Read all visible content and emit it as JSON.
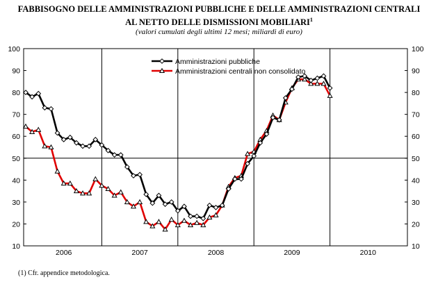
{
  "chart_data": {
    "type": "line",
    "title_line1": "FABBISOGNO DELLE AMMINISTRAZIONI PUBBLICHE E DELLE AMMINISTRAZIONI CENTRALI",
    "title_line2": "AL NETTO DELLE DISMISSIONI MOBILIARI",
    "title_sup": "1",
    "subtitle": "(valori cumulati degli ultimi 12 mesi; miliardi di euro)",
    "x_labels": [
      "2006",
      "2007",
      "2008",
      "2009",
      "2010"
    ],
    "ylim": [
      10,
      100
    ],
    "y_ticks": [
      10,
      20,
      30,
      40,
      50,
      60,
      70,
      80,
      90,
      100
    ],
    "grid": "vertical year separators and horizontal line at 50",
    "legend_placement": "top-center",
    "series": [
      {
        "name": "Amministrazioni pubbliche",
        "color": "#000000",
        "marker": "diamond",
        "x": [
          "2006-01",
          "2006-02",
          "2006-03",
          "2006-04",
          "2006-05",
          "2006-06",
          "2006-07",
          "2006-08",
          "2006-09",
          "2006-10",
          "2006-11",
          "2006-12",
          "2007-01",
          "2007-02",
          "2007-03",
          "2007-04",
          "2007-05",
          "2007-06",
          "2007-07",
          "2007-08",
          "2007-09",
          "2007-10",
          "2007-11",
          "2007-12",
          "2008-01",
          "2008-02",
          "2008-03",
          "2008-04",
          "2008-05",
          "2008-06",
          "2008-07",
          "2008-08",
          "2008-09",
          "2008-10",
          "2008-11",
          "2008-12",
          "2009-01",
          "2009-02",
          "2009-03",
          "2009-04",
          "2009-05",
          "2009-06",
          "2009-07",
          "2009-08",
          "2009-09",
          "2009-10",
          "2009-11",
          "2009-12",
          "2010-01"
        ],
        "values": [
          80,
          78,
          79.5,
          73,
          72.5,
          61.5,
          58.5,
          59.5,
          57,
          55.5,
          55.5,
          58.5,
          56,
          53.5,
          51.5,
          51.5,
          46,
          42,
          42.5,
          33.5,
          29.5,
          33,
          29,
          30,
          26,
          28,
          23.5,
          23.5,
          22.5,
          28.5,
          27.5,
          28.5,
          36,
          40.5,
          40.5,
          47.5,
          51,
          57,
          61,
          68.5,
          67.5,
          77.5,
          81.5,
          87,
          87.5,
          85.5,
          86.5,
          87.5,
          82
        ]
      },
      {
        "name": "Amministrazioni centrali non consolidato",
        "color": "#e00000",
        "marker": "triangle",
        "x": [
          "2006-01",
          "2006-02",
          "2006-03",
          "2006-04",
          "2006-05",
          "2006-06",
          "2006-07",
          "2006-08",
          "2006-09",
          "2006-10",
          "2006-11",
          "2006-12",
          "2007-01",
          "2007-02",
          "2007-03",
          "2007-04",
          "2007-05",
          "2007-06",
          "2007-07",
          "2007-08",
          "2007-09",
          "2007-10",
          "2007-11",
          "2007-12",
          "2008-01",
          "2008-02",
          "2008-03",
          "2008-04",
          "2008-05",
          "2008-06",
          "2008-07",
          "2008-08",
          "2008-09",
          "2008-10",
          "2008-11",
          "2008-12",
          "2009-01",
          "2009-02",
          "2009-03",
          "2009-04",
          "2009-05",
          "2009-06",
          "2009-07",
          "2009-08",
          "2009-09",
          "2009-10",
          "2009-11",
          "2009-12",
          "2010-01"
        ],
        "values": [
          64.5,
          62,
          63,
          55.5,
          55,
          44,
          38.5,
          38.5,
          35,
          34,
          34,
          40.5,
          37.5,
          36,
          33,
          34.5,
          30,
          28,
          30,
          21,
          19,
          21,
          17.5,
          22,
          19.5,
          21.5,
          19.5,
          20.5,
          19.5,
          23,
          24,
          28.5,
          37,
          41,
          42,
          52,
          53,
          58.5,
          62.5,
          69.5,
          67.5,
          75.5,
          82,
          86,
          86,
          84,
          84,
          84,
          78.5
        ]
      }
    ]
  },
  "footnote": "(1) Cfr. appendice metodologica."
}
